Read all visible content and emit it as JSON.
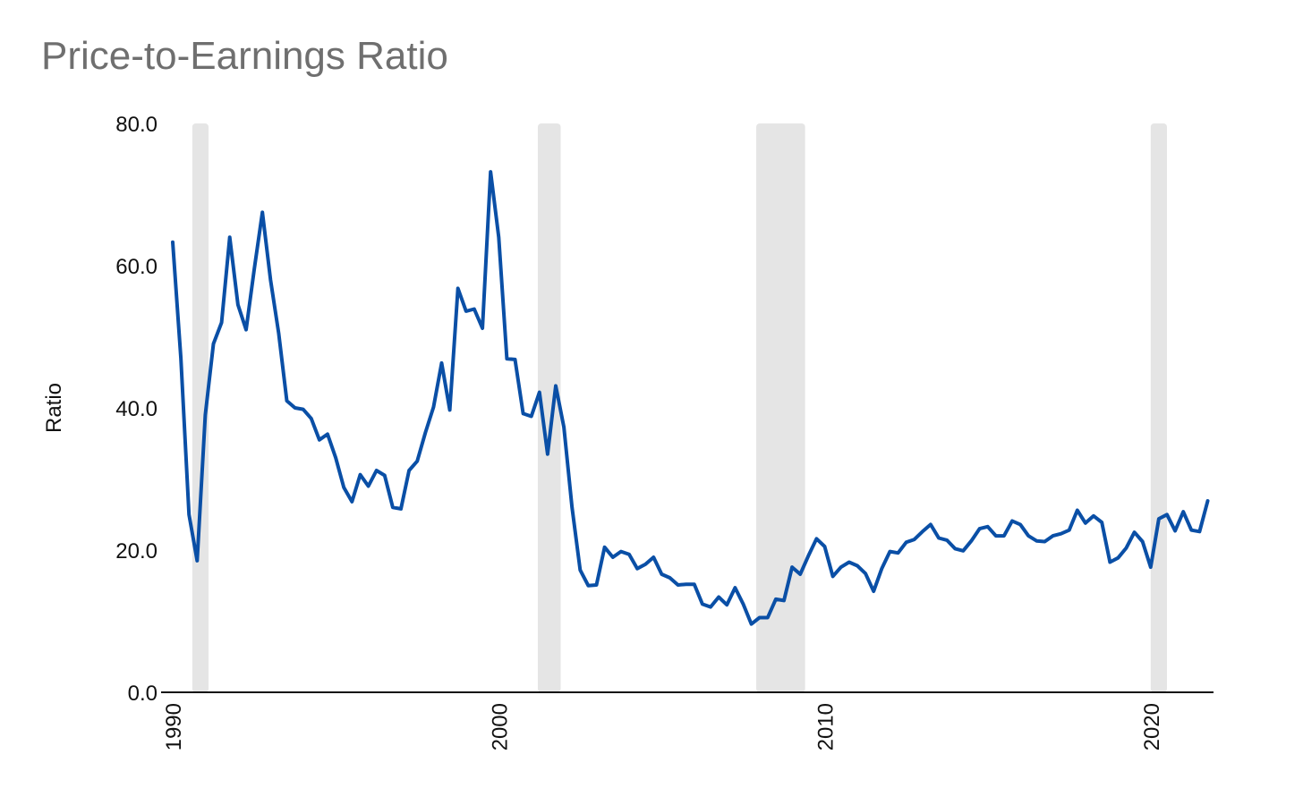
{
  "chart_data": {
    "type": "line",
    "title": "Price-to-Earnings Ratio",
    "xlabel": "",
    "ylabel": "Ratio",
    "ylim": [
      0,
      80
    ],
    "xlim": [
      1990.0,
      2021.9
    ],
    "y_ticks": [
      "0.0",
      "20.0",
      "40.0",
      "60.0",
      "80.0"
    ],
    "x_ticks": [
      "1990",
      "2000",
      "2010",
      "2020"
    ],
    "grid": false,
    "legend": "none",
    "line_color": "#0a4fa6",
    "recession_color": "#e5e5e5",
    "recessions": [
      [
        1990.6,
        1991.1
      ],
      [
        2001.2,
        2001.9
      ],
      [
        2007.9,
        2009.4
      ],
      [
        2020.0,
        2020.5
      ]
    ],
    "series": [
      {
        "x": [
          1990.0,
          1990.25,
          1990.5,
          1990.75,
          1991.0,
          1991.25,
          1991.5,
          1991.75,
          1992.0,
          1992.25,
          1992.5,
          1992.75,
          1993.0,
          1993.25,
          1993.5,
          1993.75,
          1994.0,
          1994.25,
          1994.5,
          1994.75,
          1995.0,
          1995.25,
          1995.5,
          1995.75,
          1996.0,
          1996.25,
          1996.5,
          1996.75,
          1997.0,
          1997.25,
          1997.5,
          1997.75,
          1998.0,
          1998.25,
          1998.5,
          1998.75,
          1999.0,
          1999.25,
          1999.5,
          1999.75,
          2000.0,
          2000.25,
          2000.5,
          2000.75,
          2001.0,
          2001.25,
          2001.5,
          2001.75,
          2002.0,
          2002.25,
          2002.5,
          2002.75,
          2003.0,
          2003.25,
          2003.5,
          2003.75,
          2004.0,
          2004.25,
          2004.5,
          2004.75,
          2005.0,
          2005.25,
          2005.5,
          2005.75,
          2006.0,
          2006.25,
          2006.5,
          2006.75,
          2007.0,
          2007.25,
          2007.5,
          2007.75,
          2008.0,
          2008.25,
          2008.5,
          2008.75,
          2009.0,
          2009.25,
          2009.5,
          2009.75,
          2010.0,
          2010.25,
          2010.5,
          2010.75,
          2011.0,
          2011.25,
          2011.5,
          2011.75,
          2012.0,
          2012.25,
          2012.5,
          2012.75,
          2013.0,
          2013.25,
          2013.5,
          2013.75,
          2014.0,
          2014.25,
          2014.5,
          2014.75,
          2015.0,
          2015.25,
          2015.5,
          2015.75,
          2016.0,
          2016.25,
          2016.5,
          2016.75,
          2017.0,
          2017.25,
          2017.5,
          2017.75,
          2018.0,
          2018.25,
          2018.5,
          2018.75,
          2019.0,
          2019.25,
          2019.5,
          2019.75,
          2020.0,
          2020.25,
          2020.5,
          2020.75,
          2021.0,
          2021.25,
          2021.5,
          2021.75
        ],
        "values": [
          63.3,
          47.0,
          25.0,
          18.5,
          39.0,
          49.0,
          52.0,
          64.0,
          54.5,
          51.0,
          59.5,
          67.5,
          58.0,
          50.5,
          41.0,
          40.0,
          39.8,
          38.5,
          35.5,
          36.3,
          33.0,
          28.8,
          26.8,
          30.6,
          29.0,
          31.2,
          30.5,
          26.0,
          25.8,
          31.2,
          32.5,
          36.5,
          40.1,
          46.3,
          39.7,
          56.8,
          53.6,
          53.9,
          51.2,
          73.2,
          64.0,
          46.9,
          46.8,
          39.2,
          38.8,
          42.2,
          33.5,
          43.1,
          37.3,
          26.0,
          17.2,
          15.0,
          15.1,
          20.4,
          19.0,
          19.8,
          19.4,
          17.4,
          18.0,
          19.0,
          16.6,
          16.1,
          15.1,
          15.2,
          15.2,
          12.4,
          12.0,
          13.4,
          12.3,
          14.7,
          12.4,
          9.6,
          10.5,
          10.5,
          13.1,
          12.9,
          17.6,
          16.6,
          19.2,
          21.6,
          20.5,
          16.3,
          17.6,
          18.3,
          17.8,
          16.7,
          14.2,
          17.4,
          19.8,
          19.6,
          21.1,
          21.5,
          22.6,
          23.6,
          21.7,
          21.4,
          20.2,
          19.9,
          21.3,
          23.0,
          23.3,
          22.0,
          22.0,
          24.1,
          23.6,
          22.0,
          21.3,
          21.2,
          22.0,
          22.3,
          22.8,
          25.6,
          23.8,
          24.8,
          23.9,
          18.3,
          18.9,
          20.3,
          22.5,
          21.2,
          17.6,
          24.4,
          25.0,
          22.7,
          25.4,
          22.8,
          22.6,
          26.9
        ]
      }
    ]
  }
}
